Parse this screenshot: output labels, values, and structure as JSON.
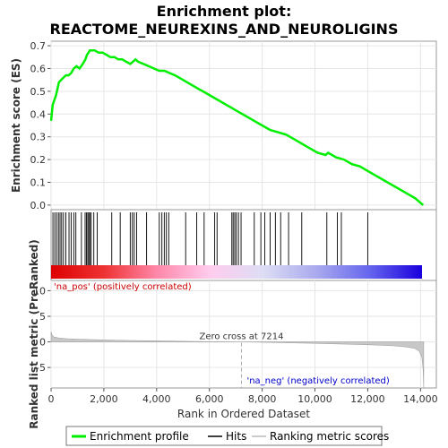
{
  "chart_data": {
    "type": "line",
    "title": "Enrichment plot:",
    "subtitle": "REACTOME_NEUREXINS_AND_NEUROLIGINS",
    "es_panel": {
      "ylabel": "Enrichment score (ES)",
      "ylim": [
        -0.02,
        0.72
      ],
      "yticks": [
        0.0,
        0.1,
        0.2,
        0.3,
        0.4,
        0.5,
        0.6,
        0.7
      ],
      "ytick_labels": [
        "0.0",
        "0.1",
        "0.2",
        "0.3",
        "0.4",
        "0.5",
        "0.6",
        "0.7"
      ],
      "series": [
        {
          "name": "Enrichment profile",
          "color": "#00ee00",
          "x": [
            0,
            60,
            120,
            180,
            240,
            300,
            380,
            470,
            560,
            660,
            760,
            860,
            960,
            1080,
            1200,
            1300,
            1360,
            1420,
            1470,
            1530,
            1650,
            1800,
            1950,
            2100,
            2250,
            2400,
            2550,
            2700,
            2850,
            3000,
            3100,
            3200,
            3300,
            3500,
            3700,
            3900,
            4100,
            4300,
            4500,
            4700,
            5000,
            5300,
            5600,
            5900,
            6200,
            6500,
            6800,
            7100,
            7400,
            7700,
            8000,
            8300,
            8600,
            8900,
            9200,
            9500,
            9800,
            10100,
            10400,
            10500,
            10800,
            11100,
            11400,
            11700,
            12000,
            12300,
            12600,
            12900,
            13200,
            13500,
            13800,
            14100
          ],
          "y": [
            0.37,
            0.44,
            0.46,
            0.48,
            0.51,
            0.54,
            0.55,
            0.56,
            0.57,
            0.57,
            0.58,
            0.6,
            0.61,
            0.6,
            0.62,
            0.64,
            0.66,
            0.67,
            0.68,
            0.68,
            0.68,
            0.67,
            0.67,
            0.66,
            0.65,
            0.65,
            0.64,
            0.64,
            0.63,
            0.62,
            0.63,
            0.64,
            0.63,
            0.62,
            0.61,
            0.6,
            0.59,
            0.59,
            0.58,
            0.57,
            0.55,
            0.53,
            0.51,
            0.49,
            0.47,
            0.45,
            0.43,
            0.41,
            0.39,
            0.37,
            0.35,
            0.33,
            0.32,
            0.31,
            0.29,
            0.27,
            0.25,
            0.23,
            0.22,
            0.23,
            0.21,
            0.2,
            0.18,
            0.17,
            0.15,
            0.13,
            0.11,
            0.09,
            0.07,
            0.05,
            0.03,
            0.0
          ]
        }
      ]
    },
    "hits_panel": {
      "series_name": "Hits",
      "hit_ranks": [
        70,
        140,
        210,
        280,
        340,
        400,
        470,
        560,
        680,
        760,
        860,
        940,
        1150,
        1290,
        1340,
        1390,
        1430,
        1470,
        1520,
        1620,
        1750,
        2300,
        2620,
        3000,
        3080,
        3150,
        3240,
        3620,
        4100,
        4200,
        4290,
        4370,
        4460,
        5100,
        5520,
        5800,
        6200,
        6290,
        6850,
        6900,
        6960,
        7020,
        7100,
        7200,
        7700,
        7950,
        8100,
        8300,
        8500,
        8700,
        9000,
        9500,
        10450,
        10850,
        11000,
        12000
      ],
      "gradient_colors": [
        "#dd0000",
        "#ee3333",
        "#ff88aa",
        "#ffccee",
        "#ddddf5",
        "#aaaaee",
        "#6666ee",
        "#1a00dd"
      ]
    },
    "metric_panel": {
      "ylabel": "Ranked list metric (PreRanked)",
      "ylim": [
        -9,
        12
      ],
      "yticks": [
        -5,
        0,
        5,
        10
      ],
      "ytick_labels": [
        "-5",
        "0",
        "5",
        "10"
      ],
      "series_name": "Ranking metric scores",
      "x": [
        0,
        30,
        100,
        300,
        600,
        1000,
        2000,
        3000,
        4000,
        5000,
        6000,
        7000,
        7214,
        8000,
        9000,
        10000,
        11000,
        12000,
        13000,
        13500,
        13800,
        13950,
        14050,
        14100,
        14120
      ],
      "y": [
        2.0,
        1.4,
        0.95,
        0.75,
        0.62,
        0.52,
        0.38,
        0.28,
        0.2,
        0.12,
        0.05,
        0.01,
        0.0,
        -0.08,
        -0.18,
        -0.28,
        -0.4,
        -0.55,
        -0.78,
        -1.0,
        -1.3,
        -1.8,
        -3.0,
        -5.5,
        -9.0
      ],
      "pos_label": "'na_pos' (positively correlated)",
      "neg_label": "'na_neg' (negatively correlated)",
      "zero_cross_label": "Zero cross at 7214",
      "zero_cross": 7214
    },
    "xaxis": {
      "xlabel": "Rank in Ordered Dataset",
      "xlim": [
        0,
        14600
      ],
      "xticks": [
        0,
        2000,
        4000,
        6000,
        8000,
        10000,
        12000,
        14000
      ],
      "xtick_labels": [
        "0",
        "2,000",
        "4,000",
        "6,000",
        "8,000",
        "10,000",
        "12,000",
        "14,000"
      ]
    },
    "legend": {
      "placement": "bottom",
      "items": [
        "Enrichment profile",
        "Hits",
        "Ranking metric scores"
      ]
    }
  }
}
